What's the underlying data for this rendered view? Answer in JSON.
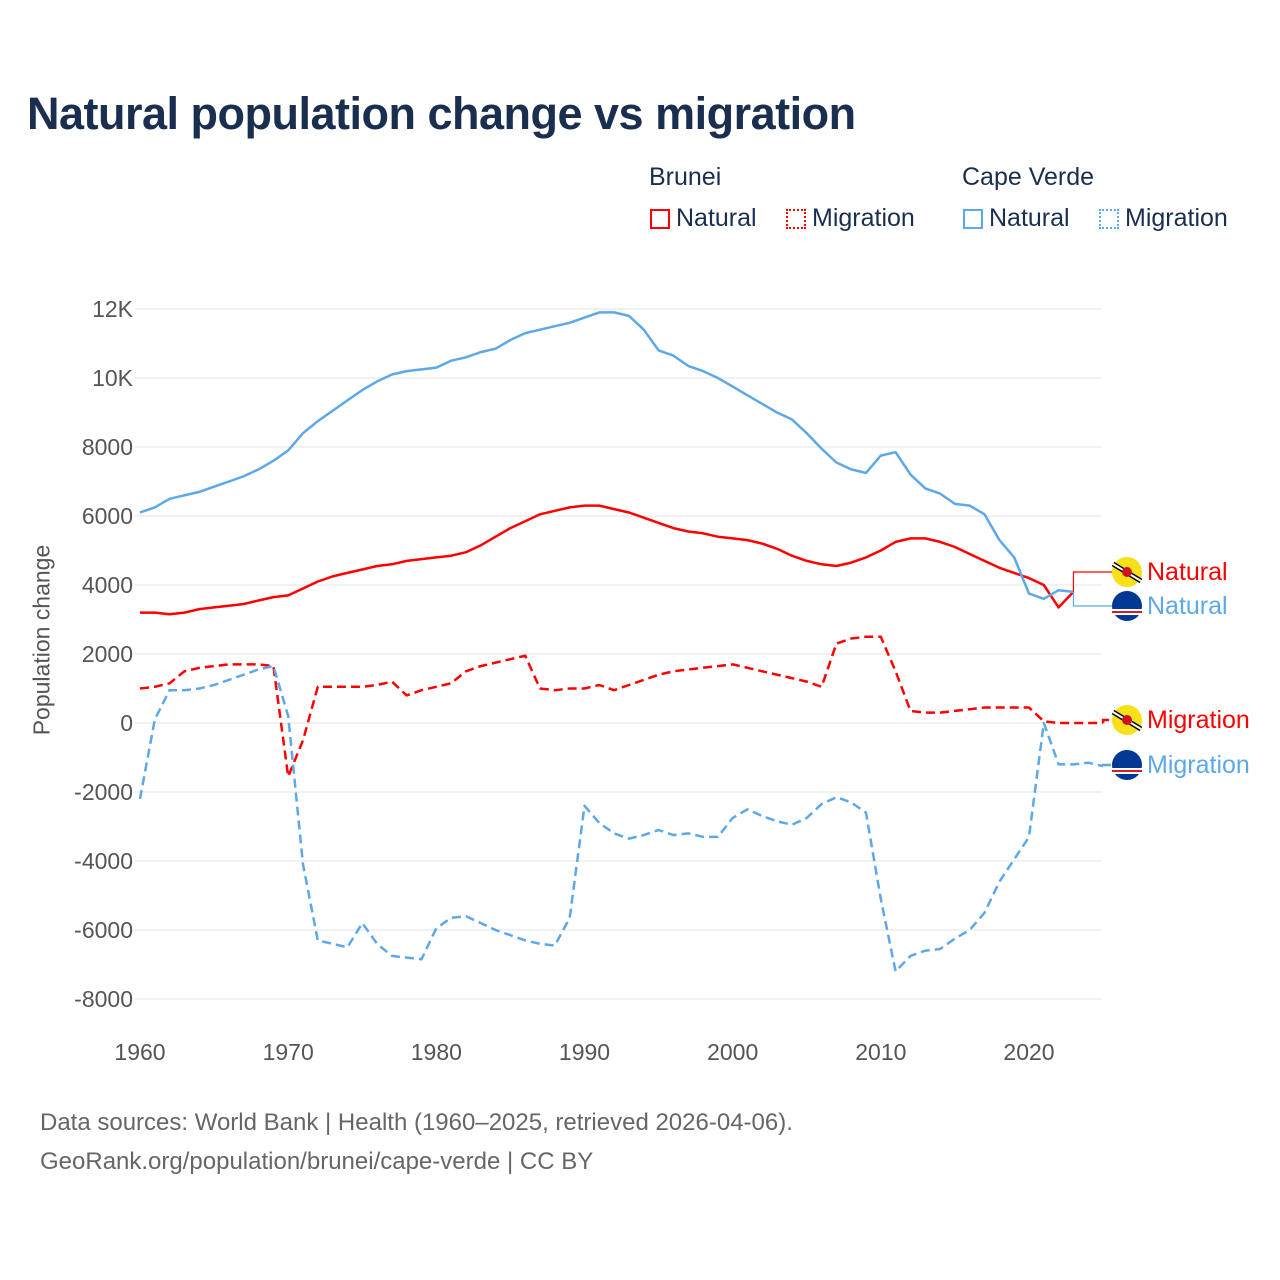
{
  "title": "Natural population change vs migration",
  "legend": {
    "groups": [
      {
        "name": "Brunei",
        "items": [
          "Natural",
          "Migration"
        ]
      },
      {
        "name": "Cape Verde",
        "items": [
          "Natural",
          "Migration"
        ]
      }
    ]
  },
  "colors": {
    "brunei": "#ff0000",
    "cape_verde": "#5da8e8"
  },
  "footer": {
    "line1": "Data sources: World Bank | Health (1960–2025, retrieved 2026-04-06).",
    "line2": "GeoRank.org/population/brunei/cape-verde | CC BY"
  },
  "chart_data": {
    "type": "line",
    "title": "Natural population change vs migration",
    "xlabel": "",
    "ylabel": "Population change",
    "xlim": [
      1960,
      2025
    ],
    "ylim": [
      -8000,
      12000
    ],
    "x_ticks": [
      1960,
      1970,
      1980,
      1990,
      2000,
      2010,
      2020
    ],
    "y_ticks": [
      {
        "v": 12000,
        "label": "12K"
      },
      {
        "v": 10000,
        "label": "10K"
      },
      {
        "v": 8000,
        "label": "8000"
      },
      {
        "v": 6000,
        "label": "6000"
      },
      {
        "v": 4000,
        "label": "4000"
      },
      {
        "v": 2000,
        "label": "2000"
      },
      {
        "v": 0,
        "label": "0"
      },
      {
        "v": -2000,
        "label": "-2000"
      },
      {
        "v": -4000,
        "label": "-4000"
      },
      {
        "v": -6000,
        "label": "-6000"
      },
      {
        "v": -8000,
        "label": "-8000"
      }
    ],
    "grid": true,
    "series": [
      {
        "name": "Brunei Natural",
        "label": "Natural",
        "country": "brunei",
        "dashed": false,
        "start": 1960,
        "values": [
          3200,
          3200,
          3150,
          3200,
          3300,
          3350,
          3400,
          3450,
          3550,
          3650,
          3700,
          3900,
          4100,
          4250,
          4350,
          4450,
          4550,
          4600,
          4700,
          4750,
          4800,
          4850,
          4950,
          5150,
          5400,
          5650,
          5850,
          6050,
          6150,
          6250,
          6300,
          6300,
          6200,
          6100,
          5950,
          5800,
          5650,
          5550,
          5500,
          5400,
          5350,
          5300,
          5200,
          5050,
          4850,
          4700,
          4600,
          4550,
          4650,
          4800,
          5000,
          5250,
          5350,
          5350,
          5250,
          5100,
          4900,
          4700,
          4500,
          4350,
          4200,
          4000,
          3350,
          3800
        ]
      },
      {
        "name": "Cape Verde Natural",
        "label": "Natural",
        "country": "cape_verde",
        "dashed": false,
        "start": 1960,
        "values": [
          6100,
          6250,
          6500,
          6600,
          6700,
          6850,
          7000,
          7150,
          7350,
          7600,
          7900,
          8400,
          8750,
          9050,
          9350,
          9650,
          9900,
          10100,
          10200,
          10250,
          10300,
          10500,
          10600,
          10750,
          10850,
          11100,
          11300,
          11400,
          11500,
          11600,
          11750,
          11900,
          11900,
          11800,
          11400,
          10800,
          10650,
          10350,
          10200,
          10000,
          9750,
          9500,
          9250,
          9000,
          8800,
          8400,
          7950,
          7550,
          7350,
          7250,
          7750,
          7850,
          7200,
          6800,
          6650,
          6350,
          6300,
          6050,
          5300,
          4800,
          3750,
          3600,
          3850,
          3800
        ]
      },
      {
        "name": "Brunei Migration",
        "label": "Migration",
        "country": "brunei",
        "dashed": true,
        "start": 1960,
        "values": [
          1000,
          1050,
          1150,
          1500,
          1600,
          1650,
          1700,
          1700,
          1700,
          1650,
          -1550,
          -500,
          1050,
          1050,
          1050,
          1050,
          1100,
          1200,
          800,
          950,
          1050,
          1150,
          1500,
          1650,
          1750,
          1850,
          1950,
          1000,
          950,
          1000,
          1000,
          1100,
          950,
          1100,
          1250,
          1400,
          1500,
          1550,
          1600,
          1650,
          1700,
          1600,
          1500,
          1400,
          1300,
          1200,
          1050,
          2300,
          2450,
          2500,
          2500,
          1500,
          350,
          300,
          300,
          350,
          400,
          450,
          450,
          450,
          450,
          50,
          0,
          0,
          0,
          0
        ]
      },
      {
        "name": "Cape Verde Migration",
        "label": "Migration",
        "country": "cape_verde",
        "dashed": true,
        "start": 1960,
        "values": [
          -2200,
          100,
          950,
          950,
          1000,
          1100,
          1250,
          1400,
          1550,
          1650,
          200,
          -4100,
          -6300,
          -6400,
          -6500,
          -5800,
          -6400,
          -6750,
          -6800,
          -6850,
          -5950,
          -5650,
          -5600,
          -5800,
          -6000,
          -6150,
          -6300,
          -6400,
          -6450,
          -5650,
          -2400,
          -2900,
          -3200,
          -3350,
          -3250,
          -3100,
          -3250,
          -3200,
          -3300,
          -3300,
          -2750,
          -2500,
          -2700,
          -2850,
          -2950,
          -2750,
          -2350,
          -2150,
          -2300,
          -2600,
          -5100,
          -7200,
          -6750,
          -6600,
          -6550,
          -6250,
          -6000,
          -5500,
          -4600,
          -3950,
          -3300,
          0,
          -1200,
          -1200,
          -1150,
          -1250
        ]
      }
    ]
  }
}
